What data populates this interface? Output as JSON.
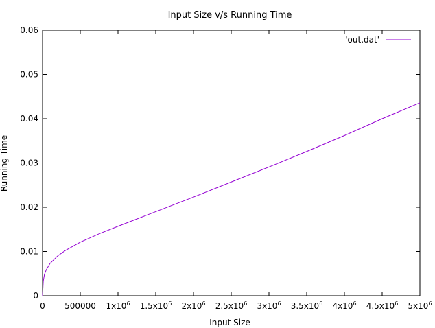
{
  "chart_data": {
    "type": "line",
    "title": "Input Size v/s Running Time",
    "xlabel": "Input Size",
    "ylabel": "Running Time",
    "xlim": [
      0,
      5000000
    ],
    "ylim": [
      0,
      0.06
    ],
    "grid": false,
    "legend_position": "top-right",
    "x_ticks": [
      {
        "value": 0,
        "base": "0",
        "sup": ""
      },
      {
        "value": 500000,
        "base": "500000",
        "sup": ""
      },
      {
        "value": 1000000,
        "base": "1x10",
        "sup": "6"
      },
      {
        "value": 1500000,
        "base": "1.5x10",
        "sup": "6"
      },
      {
        "value": 2000000,
        "base": "2x10",
        "sup": "6"
      },
      {
        "value": 2500000,
        "base": "2.5x10",
        "sup": "6"
      },
      {
        "value": 3000000,
        "base": "3x10",
        "sup": "6"
      },
      {
        "value": 3500000,
        "base": "3.5x10",
        "sup": "6"
      },
      {
        "value": 4000000,
        "base": "4x10",
        "sup": "6"
      },
      {
        "value": 4500000,
        "base": "4.5x10",
        "sup": "6"
      },
      {
        "value": 5000000,
        "base": "5x10",
        "sup": "6"
      }
    ],
    "y_ticks": [
      {
        "value": 0,
        "label": "0"
      },
      {
        "value": 0.01,
        "label": "0.01"
      },
      {
        "value": 0.02,
        "label": "0.02"
      },
      {
        "value": 0.03,
        "label": "0.03"
      },
      {
        "value": 0.04,
        "label": "0.04"
      },
      {
        "value": 0.05,
        "label": "0.05"
      },
      {
        "value": 0.06,
        "label": "0.06"
      }
    ],
    "series": [
      {
        "name": "'out.dat'",
        "color": "#9400d3",
        "x": [
          0,
          10000,
          25000,
          50000,
          100000,
          200000,
          300000,
          500000,
          750000,
          1000000,
          1500000,
          2000000,
          2500000,
          3000000,
          3500000,
          4000000,
          4500000,
          5000000
        ],
        "y": [
          0,
          0.0033,
          0.0048,
          0.0059,
          0.0073,
          0.009,
          0.0102,
          0.0121,
          0.014,
          0.0157,
          0.019,
          0.0223,
          0.0257,
          0.0291,
          0.0326,
          0.0362,
          0.04,
          0.0436
        ]
      }
    ]
  }
}
